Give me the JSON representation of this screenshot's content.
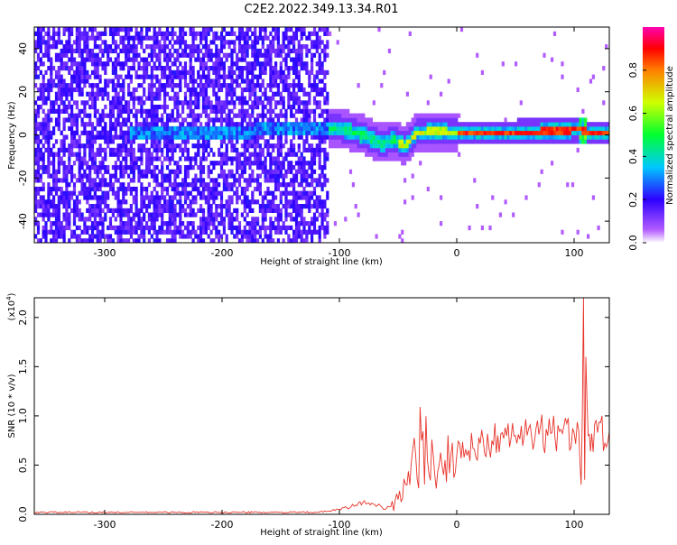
{
  "title": "C2E2.2022.349.13.34.R01",
  "chart_data": [
    {
      "type": "heatmap",
      "xlabel": "Height of straight line (km)",
      "ylabel": "Frequency (Hz)",
      "xlim": [
        -360,
        130
      ],
      "ylim": [
        -50,
        50
      ],
      "x_ticks": [
        -300,
        -200,
        -100,
        0,
        100
      ],
      "x_tick_labels": [
        "-300",
        "-200",
        "-100",
        "0",
        "100"
      ],
      "y_ticks": [
        -40,
        -20,
        0,
        20,
        40
      ],
      "y_tick_labels": [
        "-40",
        "-20",
        "0",
        "20",
        "40"
      ],
      "colorbar": {
        "label": "Normalized spectral amplitude",
        "ticks": [
          0.0,
          0.2,
          0.4,
          0.6,
          0.8
        ],
        "tick_labels": [
          "0.0",
          "0.2",
          "0.4",
          "0.6",
          "0.8"
        ],
        "range": [
          0.0,
          1.0
        ],
        "colormap": "rainbow (white-purple-blue-cyan-green-yellow-red-magenta)"
      },
      "ridge": {
        "x": [
          -270,
          -250,
          -200,
          -175,
          -150,
          -125,
          -100,
          -80,
          -65,
          -55,
          -45,
          -35,
          -20,
          0,
          50,
          90,
          105,
          110,
          130
        ],
        "y": [
          0,
          0,
          0,
          1,
          2,
          3,
          2,
          -1,
          -5,
          -3,
          -6,
          0,
          1,
          0,
          0,
          1,
          2,
          0,
          0
        ]
      },
      "noise_region_x": [
        -360,
        -110
      ],
      "grid": false,
      "legend": "none"
    },
    {
      "type": "line",
      "xlabel": "Height of straight line (km)",
      "ylabel": "SNR (10 * v/v)",
      "y_multiplier": "(x10",
      "y_multiplier_exp": "4",
      "y_multiplier_close": ")",
      "xlim": [
        -360,
        130
      ],
      "ylim": [
        0.0,
        2.2
      ],
      "x_ticks": [
        -300,
        -200,
        -100,
        0,
        100
      ],
      "x_tick_labels": [
        "-300",
        "-200",
        "-100",
        "0",
        "100"
      ],
      "y_ticks": [
        0.0,
        0.5,
        1.0,
        1.5,
        2.0
      ],
      "y_tick_labels": [
        "0.0",
        "0.5",
        "1.0",
        "1.5",
        "2.0"
      ],
      "series": [
        {
          "color": "#e8332a",
          "x": [
            -360,
            -300,
            -250,
            -200,
            -150,
            -120,
            -110,
            -100,
            -90,
            -80,
            -70,
            -60,
            -50,
            -40,
            -35,
            -30,
            -25,
            -20,
            -15,
            -10,
            -5,
            0,
            10,
            20,
            30,
            40,
            50,
            60,
            70,
            80,
            90,
            100,
            104,
            106,
            107,
            108,
            109,
            110,
            112,
            115,
            120,
            130
          ],
          "y": [
            0.02,
            0.02,
            0.02,
            0.02,
            0.02,
            0.02,
            0.03,
            0.05,
            0.08,
            0.12,
            0.1,
            0.06,
            0.15,
            0.3,
            0.6,
            0.75,
            0.55,
            0.6,
            0.5,
            0.55,
            0.6,
            0.6,
            0.65,
            0.72,
            0.75,
            0.77,
            0.8,
            0.8,
            0.81,
            0.82,
            0.82,
            0.83,
            0.85,
            0.3,
            1.0,
            2.2,
            0.35,
            1.6,
            0.8,
            0.82,
            0.83,
            0.84
          ]
        }
      ],
      "grid": false,
      "legend": "none"
    }
  ]
}
